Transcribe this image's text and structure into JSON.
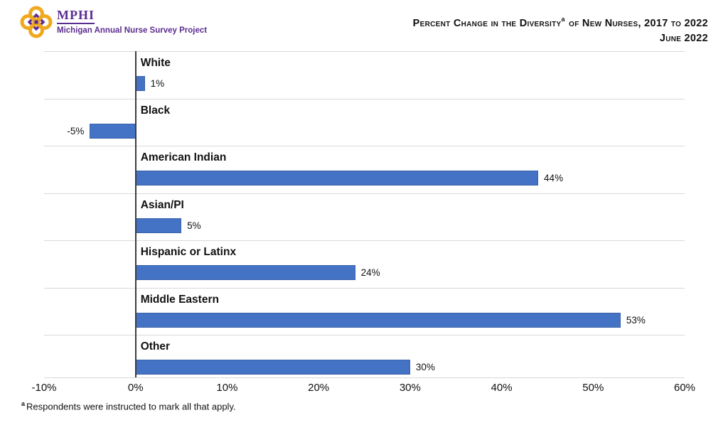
{
  "header": {
    "logo": {
      "icon": "quatrefoil-knot-icon",
      "acronym": "MPHI",
      "tagline": "Michigan Annual Nurse Survey Project",
      "gold_color": "#F0A81E",
      "purple_color": "#5C2D91"
    },
    "title_pre": "Percent Change in the Diversity",
    "title_sup": "a",
    "title_post": " of New Nurses, 2017 to 2022",
    "subtitle": "June 2022"
  },
  "chart_data": {
    "type": "bar",
    "orientation": "horizontal",
    "title": "Percent Change in the Diversity of New Nurses, 2017 to 2022",
    "subtitle": "June 2022",
    "categories": [
      "White",
      "Black",
      "American Indian",
      "Asian/PI",
      "Hispanic or Latinx",
      "Middle Eastern",
      "Other"
    ],
    "values": [
      1,
      -5,
      44,
      5,
      24,
      53,
      30
    ],
    "value_labels": [
      "1%",
      "-5%",
      "44%",
      "5%",
      "24%",
      "53%",
      "30%"
    ],
    "x_ticks": [
      "-10%",
      "0%",
      "10%",
      "20%",
      "30%",
      "40%",
      "50%",
      "60%"
    ],
    "x_tick_values": [
      -10,
      0,
      10,
      20,
      30,
      40,
      50,
      60
    ],
    "xlim": [
      -10,
      60
    ],
    "xlabel": "",
    "ylabel": "",
    "legend": "none",
    "grid": "horizontal row separators",
    "bar_color": "#4472C4",
    "bar_border_color": "#3A62A9",
    "gridline_color": "#D9D9D9",
    "axis_line_color": "#3D3D3D"
  },
  "footnote": {
    "sup": "a",
    "text": "Respondents were instructed to mark all that apply."
  }
}
